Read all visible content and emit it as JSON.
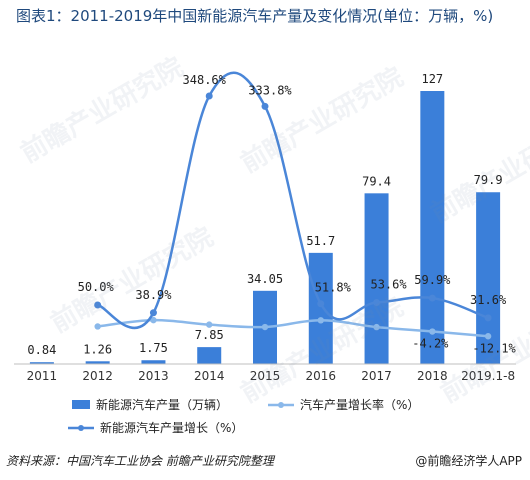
{
  "title": "图表1：2011-2019年中国新能源汽车产量及变化情况(单位：万辆，%)",
  "source": "资料来源：中国汽车工业协会 前瞻产业研究院整理",
  "brand": "@前瞻经济学人APP",
  "watermark": "前瞻产业研究院",
  "colors": {
    "bar": "#3b7fd9",
    "rate_line": "#8ab8ea",
    "growth_line": "#4a86d8",
    "title": "#1f497d"
  },
  "chart_data": {
    "type": "bar+line",
    "categories": [
      "2011",
      "2012",
      "2013",
      "2014",
      "2015",
      "2016",
      "2017",
      "2018",
      "2019.1-8"
    ],
    "bar_series": {
      "name": "新能源汽车产量（万辆）",
      "values": [
        0.84,
        1.26,
        1.75,
        7.85,
        34.05,
        51.7,
        79.4,
        127,
        79.9
      ],
      "labels": [
        "0.84",
        "1.26",
        "1.75",
        "7.85",
        "34.05",
        "51.7",
        "79.4",
        "127",
        "79.9"
      ]
    },
    "rate_series": {
      "name": "汽车产量增长率（%）",
      "values": [
        null,
        4.2,
        14.8,
        7.3,
        3.3,
        14.5,
        3.2,
        -4.2,
        -12.1
      ],
      "labels": [
        "",
        "",
        "",
        "",
        "",
        "",
        "",
        "-4.2%",
        "-12.1%"
      ]
    },
    "growth_series": {
      "name": "新能源汽车产量增长（%）",
      "values": [
        null,
        50.0,
        38.9,
        348.6,
        333.8,
        51.8,
        53.6,
        59.9,
        31.6
      ],
      "labels": [
        "",
        "50.0%",
        "38.9%",
        "348.6%",
        "333.8%",
        "51.8%",
        "53.6%",
        "59.9%",
        "31.6%"
      ]
    },
    "legend_position": "bottom"
  }
}
